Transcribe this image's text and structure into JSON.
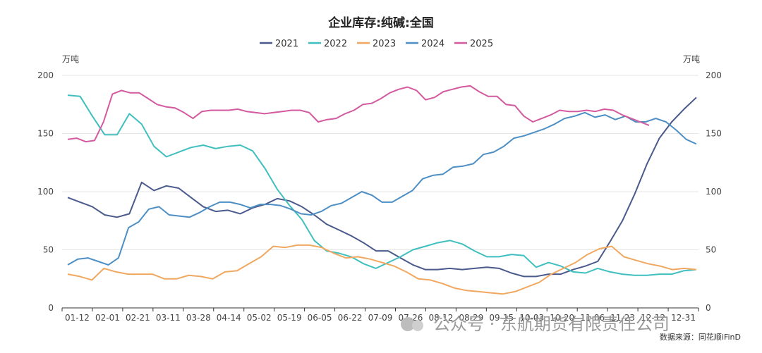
{
  "chart_data": {
    "type": "line",
    "title": "企业库存:纯碱:全国",
    "y_unit_left": "万吨",
    "y_unit_right": "万吨",
    "ylim": [
      0,
      200
    ],
    "yticks": [
      0,
      50,
      100,
      150,
      200
    ],
    "x_tick_labels": [
      "01-12",
      "02-01",
      "02-21",
      "03-11",
      "03-28",
      "04-14",
      "05-02",
      "05-19",
      "06-05",
      "06-22",
      "07-09",
      "07-26",
      "08-12",
      "08-29",
      "09-15",
      "10-03",
      "10-20",
      "11-06",
      "11-23",
      "12-12",
      "12-31"
    ],
    "legend_position": "top-center",
    "grid": true,
    "series": [
      {
        "name": "2021",
        "color": "#4a5a8c",
        "values": [
          95,
          91,
          87,
          80,
          78,
          81,
          108,
          101,
          105,
          103,
          95,
          87,
          83,
          84,
          81,
          86,
          89,
          94,
          92,
          87,
          80,
          72,
          67,
          62,
          56,
          49,
          49,
          43,
          37,
          33,
          33,
          34,
          33,
          34,
          35,
          34,
          30,
          27,
          27,
          29,
          29,
          33,
          36,
          40,
          57,
          75,
          98,
          124,
          146,
          160,
          171,
          181
        ]
      },
      {
        "name": "2022",
        "color": "#3fbfbf",
        "values": [
          183,
          182,
          165,
          149,
          149,
          167,
          158,
          139,
          130,
          134,
          138,
          140,
          137,
          139,
          140,
          135,
          120,
          102,
          88,
          76,
          58,
          49,
          47,
          44,
          38,
          34,
          39,
          44,
          50,
          53,
          56,
          58,
          55,
          49,
          44,
          44,
          46,
          45,
          35,
          39,
          36,
          31,
          30,
          34,
          31,
          29,
          28,
          28,
          29,
          29,
          32,
          33
        ]
      },
      {
        "name": "2023",
        "color": "#f0a860",
        "values": [
          29,
          27,
          24,
          34,
          31,
          29,
          29,
          29,
          25,
          25,
          28,
          27,
          25,
          31,
          32,
          38,
          44,
          53,
          52,
          54,
          54,
          52,
          47,
          43,
          44,
          42,
          39,
          36,
          31,
          25,
          24,
          21,
          17,
          15,
          14,
          13,
          12,
          14,
          18,
          22,
          29,
          34,
          39,
          46,
          51,
          53,
          44,
          41,
          38,
          36,
          33,
          34,
          33
        ]
      },
      {
        "name": "2024",
        "color": "#4d8fc4",
        "values": [
          37,
          42,
          43,
          40,
          37,
          43,
          69,
          74,
          85,
          87,
          80,
          79,
          78,
          82,
          87,
          91,
          91,
          89,
          86,
          89,
          89,
          88,
          85,
          81,
          80,
          83,
          88,
          90,
          95,
          100,
          97,
          91,
          91,
          96,
          101,
          111,
          114,
          115,
          121,
          122,
          124,
          132,
          134,
          139,
          146,
          148,
          151,
          154,
          158,
          163,
          165,
          168,
          164,
          166,
          162,
          165,
          160,
          160,
          163,
          160,
          153,
          145,
          141
        ]
      },
      {
        "name": "2025",
        "color": "#d45aa0",
        "values": [
          145,
          146,
          143,
          144,
          160,
          184,
          187,
          185,
          185,
          180,
          175,
          173,
          172,
          168,
          163,
          169,
          170,
          170,
          170,
          171,
          169,
          168,
          167,
          168,
          169,
          170,
          170,
          168,
          160,
          162,
          163,
          167,
          170,
          175,
          176,
          180,
          185,
          188,
          190,
          187,
          179,
          181,
          186,
          188,
          190,
          191,
          186,
          182,
          182,
          175,
          174,
          165,
          160,
          163,
          166,
          170,
          169,
          169,
          170,
          169,
          171,
          170,
          166,
          163,
          160,
          157
        ]
      }
    ]
  },
  "source": "数据来源：同花顺iFinD",
  "watermark": "公众号 · 东航期货有限责任公司"
}
